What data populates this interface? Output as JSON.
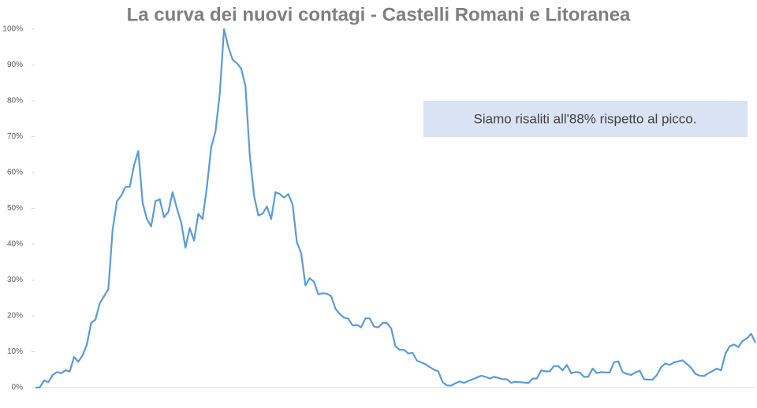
{
  "chart_data": {
    "type": "line",
    "title": "La curva dei nuovi contagi - Castelli Romani e Litoranea",
    "annotation": "Siamo risaliti all'88% rispetto al picco.",
    "color": "#5b9bd5",
    "ylim": [
      0,
      100
    ],
    "yticks": [
      {
        "value": 0,
        "label": "0%"
      },
      {
        "value": 10,
        "label": "10%"
      },
      {
        "value": 20,
        "label": "20%"
      },
      {
        "value": 30,
        "label": "30%"
      },
      {
        "value": 40,
        "label": "40%"
      },
      {
        "value": 50,
        "label": "50%"
      },
      {
        "value": 60,
        "label": "60%"
      },
      {
        "value": 70,
        "label": "70%"
      },
      {
        "value": 80,
        "label": "80%"
      },
      {
        "value": 90,
        "label": "90%"
      },
      {
        "value": 100,
        "label": "100%"
      }
    ],
    "values": [
      0,
      0,
      2,
      1.5,
      3.5,
      4.3,
      4,
      4.8,
      4.5,
      8.5,
      7.2,
      9,
      12,
      18,
      19,
      23.5,
      25.5,
      27.5,
      44,
      52,
      53.5,
      56,
      56,
      62,
      66,
      51.5,
      47,
      45,
      52,
      52.5,
      47.5,
      49,
      54.5,
      50,
      46,
      39,
      44.5,
      41,
      48.5,
      47,
      56,
      67,
      71.5,
      82,
      100,
      95,
      91.5,
      90.5,
      89,
      84,
      65,
      53.5,
      48,
      48.5,
      50.5,
      47,
      54.5,
      54,
      53,
      54,
      51,
      40.5,
      37.5,
      28.5,
      30.5,
      29.5,
      26,
      26.3,
      26.2,
      25.5,
      22,
      20.5,
      19.5,
      19.2,
      17.3,
      17.5,
      16.8,
      19.3,
      19.3,
      17,
      16.8,
      18,
      18,
      16.5,
      11.5,
      10.5,
      10.5,
      9.5,
      9.7,
      7.5,
      7,
      6.5,
      5.7,
      5,
      4.5,
      1.5,
      0.6,
      0.5,
      1.2,
      1.7,
      1.3,
      1.8,
      2.3,
      2.8,
      3.3,
      3,
      2.5,
      3,
      2.7,
      2.3,
      2.3,
      1.3,
      1.6,
      1.5,
      1.4,
      1.2,
      2.5,
      2.5,
      4.8,
      4.5,
      4.5,
      6,
      6,
      4.8,
      6.3,
      4,
      4.3,
      4.2,
      3,
      3,
      5.3,
      4,
      4.3,
      4.2,
      4.2,
      7,
      7.3,
      4.3,
      3.8,
      3.5,
      4.2,
      4.7,
      2.3,
      2.2,
      2.2,
      3.5,
      5.7,
      6.7,
      6.3,
      7,
      7.3,
      7.6,
      6.6,
      5.5,
      3.8,
      3.3,
      3.2,
      4,
      4.6,
      5.3,
      4.8,
      9.5,
      11.5,
      12,
      11.3,
      13,
      13.7,
      15,
      12.5
    ]
  }
}
